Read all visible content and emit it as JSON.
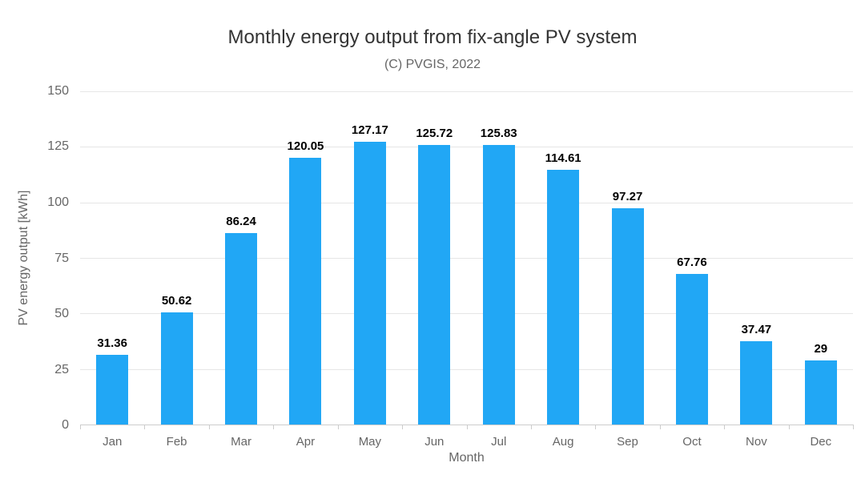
{
  "chart_data": {
    "type": "bar",
    "title": "Monthly energy output from fix-angle PV system",
    "subtitle": "(C) PVGIS, 2022",
    "xlabel": "Month",
    "ylabel": "PV energy output [kWh]",
    "categories": [
      "Jan",
      "Feb",
      "Mar",
      "Apr",
      "May",
      "Jun",
      "Jul",
      "Aug",
      "Sep",
      "Oct",
      "Nov",
      "Dec"
    ],
    "values": [
      31.36,
      50.62,
      86.24,
      120.05,
      127.17,
      125.72,
      125.83,
      114.61,
      97.27,
      67.76,
      37.47,
      29
    ],
    "value_labels": [
      "31.36",
      "50.62",
      "86.24",
      "120.05",
      "127.17",
      "125.72",
      "125.83",
      "114.61",
      "97.27",
      "67.76",
      "37.47",
      "29"
    ],
    "ylim": [
      0,
      150
    ],
    "yticks": [
      0,
      25,
      50,
      75,
      100,
      125,
      150
    ],
    "grid": true,
    "legend": "none",
    "colors": {
      "bar": "#21a7f5",
      "title": "#333333",
      "subtitle": "#666666",
      "axis_label": "#666666",
      "tick_label": "#666666",
      "value_label": "#000000",
      "gridline": "#e6e6e6",
      "axis_line": "#cccccc"
    }
  }
}
